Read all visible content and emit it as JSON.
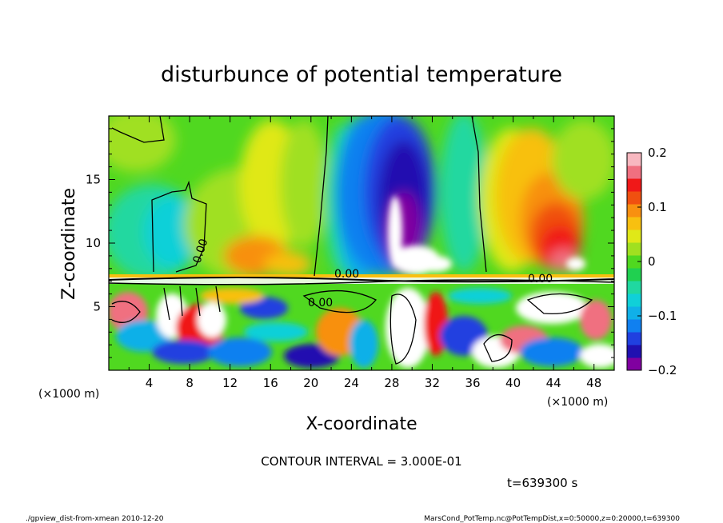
{
  "chart_data": {
    "type": "heatmap",
    "title": "disturbunce of potential temperature",
    "xlabel": "X-coordinate",
    "ylabel": "Z-coordinate",
    "x_unit": "(×1000 m)",
    "y_unit": "(×1000 m)",
    "xlim": [
      0,
      50
    ],
    "ylim": [
      0,
      20
    ],
    "x_ticks": [
      "4",
      "8",
      "12",
      "16",
      "20",
      "24",
      "28",
      "32",
      "36",
      "40",
      "44",
      "48"
    ],
    "y_ticks": [
      "5",
      "10",
      "15"
    ],
    "colorbar": {
      "range": [
        -0.2,
        0.2
      ],
      "ticks": [
        "0.2",
        "0.1",
        "0",
        "−0.1",
        "−0.2"
      ],
      "colors": [
        "#8000a0",
        "#2010b0",
        "#2040e0",
        "#1080f0",
        "#10b0e8",
        "#10d0d8",
        "#20d8a0",
        "#20d050",
        "#50d820",
        "#a0e020",
        "#e0e818",
        "#f8c010",
        "#f89010",
        "#f05010",
        "#f01818",
        "#f07080",
        "#f8b8c0"
      ]
    },
    "contour_labels": [
      "0.00",
      "0.00",
      "0.00",
      "0.00"
    ],
    "contour_interval": "CONTOUR INTERVAL = 3.000E-01",
    "time": "t=639300 s",
    "features": [
      {
        "name": "cold anomaly aloft",
        "x_center": 29.5,
        "z_range": [
          7.5,
          19
        ],
        "value": -0.2
      },
      {
        "name": "warm anomaly right",
        "x_center": 44,
        "z_range": [
          7.5,
          15
        ],
        "value": 0.18
      },
      {
        "name": "warm band left",
        "x_center": 14,
        "z_range": [
          7.5,
          12
        ],
        "value": 0.12
      },
      {
        "name": "cool patch upper-left",
        "x_center": 6.5,
        "z_range": [
          8,
          14
        ],
        "value": -0.03
      }
    ]
  },
  "footer": {
    "left": "./gpview_dist-from-xmean   2010-12-20",
    "right": "MarsCond_PotTemp.nc@PotTempDist,x=0:50000,z=0:20000,t=639300"
  }
}
